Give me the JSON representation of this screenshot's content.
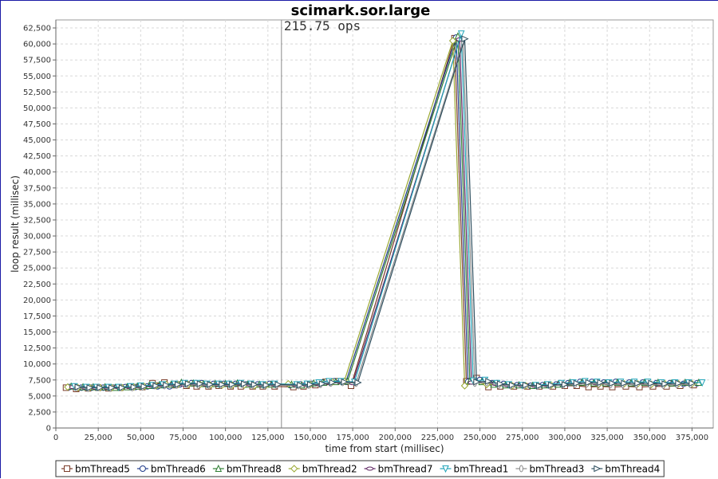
{
  "chart_data": {
    "type": "line",
    "title": "scimark.sor.large",
    "xlabel": "time from start (millisec)",
    "ylabel": "loop result (millisec)",
    "xlim": [
      0,
      387500
    ],
    "ylim": [
      0,
      63750
    ],
    "x_ticks": [
      0,
      25000,
      50000,
      75000,
      100000,
      125000,
      150000,
      175000,
      200000,
      225000,
      250000,
      275000,
      300000,
      325000,
      350000,
      375000
    ],
    "x_tick_labels": [
      "0",
      "25,000",
      "50,000",
      "75,000",
      "100,000",
      "125,000",
      "150,000",
      "175,000",
      "200,000",
      "225,000",
      "250,000",
      "275,000",
      "300,000",
      "325,000",
      "350,000",
      "375,000"
    ],
    "y_ticks": [
      0,
      2500,
      5000,
      7500,
      10000,
      12500,
      15000,
      17500,
      20000,
      22500,
      25000,
      27500,
      30000,
      32500,
      35000,
      37500,
      40000,
      42500,
      45000,
      47500,
      50000,
      52500,
      55000,
      57500,
      60000,
      62500
    ],
    "y_tick_labels": [
      "0",
      "2,500",
      "5,000",
      "7,500",
      "10,000",
      "12,500",
      "15,000",
      "17,500",
      "20,000",
      "22,500",
      "25,000",
      "27,500",
      "30,000",
      "32,500",
      "35,000",
      "37,500",
      "40,000",
      "42,500",
      "45,000",
      "47,500",
      "50,000",
      "52,500",
      "55,000",
      "57,500",
      "60,000",
      "62,500"
    ],
    "grid": true,
    "legend_position": "bottom",
    "annotation": {
      "text": "215.75 ops",
      "x": 133000
    },
    "series": [
      {
        "name": "bmThread5",
        "marker": "square",
        "color": "#7a3a28",
        "x": [
          6000,
          12000,
          19000,
          25000,
          31000,
          38000,
          44000,
          51000,
          57000,
          64000,
          70000,
          77000,
          83000,
          90000,
          96000,
          103000,
          109000,
          116000,
          122000,
          129000,
          140000,
          146000,
          153000,
          159000,
          166000,
          174000,
          235000,
          242000,
          248000,
          255000,
          262000,
          270000,
          278000,
          285000,
          293000,
          300000,
          307000,
          314000,
          321000,
          328000,
          336000,
          344000,
          352000,
          360000,
          368000,
          376000
        ],
        "y": [
          6300,
          6100,
          6200,
          6300,
          6200,
          6300,
          6400,
          6400,
          7000,
          7100,
          6700,
          6600,
          6500,
          6500,
          6600,
          6500,
          6500,
          6500,
          6500,
          6500,
          6400,
          6500,
          6700,
          7200,
          7300,
          6600,
          60900,
          7300,
          7800,
          6400,
          6500,
          6500,
          6500,
          6500,
          6500,
          6600,
          6600,
          6400,
          6500,
          6400,
          6500,
          6400,
          6500,
          6500,
          6600,
          6700
        ]
      },
      {
        "name": "bmThread6",
        "marker": "circle",
        "color": "#1f3a8a",
        "x": [
          8000,
          15000,
          21000,
          28000,
          34000,
          41000,
          47000,
          54000,
          60000,
          67000,
          73000,
          80000,
          86000,
          93000,
          99000,
          106000,
          112000,
          119000,
          126000,
          138000,
          144000,
          151000,
          157000,
          164000,
          171000,
          236000,
          243000,
          250000,
          257000,
          264000,
          272000,
          280000,
          287000,
          295000,
          302000,
          309000,
          316000,
          323000,
          330000,
          338000,
          346000,
          354000,
          362000,
          370000,
          378000
        ],
        "y": [
          6400,
          6300,
          6300,
          6300,
          6300,
          6400,
          6400,
          6500,
          6500,
          6500,
          6800,
          7000,
          7000,
          6900,
          6900,
          6900,
          6800,
          6800,
          6900,
          6700,
          6800,
          6900,
          7100,
          7300,
          7200,
          61000,
          7200,
          7500,
          7000,
          6900,
          6700,
          6600,
          6700,
          6800,
          7000,
          7200,
          7200,
          7100,
          7200,
          7100,
          7100,
          7000,
          7000,
          6900,
          7000
        ]
      },
      {
        "name": "bmThread8",
        "marker": "triangle-up",
        "color": "#2e7d32",
        "x": [
          9000,
          16000,
          22000,
          29000,
          35000,
          42000,
          48000,
          55000,
          61000,
          68000,
          74000,
          81000,
          87000,
          94000,
          100000,
          107000,
          113000,
          120000,
          127000,
          139000,
          145000,
          152000,
          158000,
          165000,
          172000,
          237000,
          244000,
          251000,
          258000,
          265000,
          273000,
          281000,
          288000,
          296000,
          303000,
          310000,
          317000,
          324000,
          331000,
          339000,
          347000,
          355000,
          363000,
          371000,
          379000
        ],
        "y": [
          6500,
          6400,
          6400,
          6400,
          6300,
          6400,
          6500,
          6600,
          6700,
          6800,
          7100,
          7000,
          6900,
          6900,
          6900,
          7000,
          6800,
          6800,
          6800,
          6800,
          6700,
          7000,
          7100,
          7200,
          7300,
          61200,
          7300,
          7200,
          6800,
          6700,
          6700,
          6600,
          6700,
          6800,
          7100,
          7100,
          7000,
          7000,
          7100,
          7000,
          7100,
          7100,
          7000,
          7100,
          7100
        ]
      },
      {
        "name": "bmThread2",
        "marker": "diamond",
        "color": "#9aa832",
        "x": [
          7000,
          13000,
          20000,
          26000,
          33000,
          39000,
          46000,
          52000,
          59000,
          65000,
          72000,
          78000,
          85000,
          91000,
          98000,
          104000,
          111000,
          117000,
          124000,
          137000,
          143000,
          150000,
          156000,
          163000,
          170000,
          234000,
          241000,
          247000,
          254000,
          261000,
          269000,
          277000,
          284000,
          292000,
          299000,
          306000,
          313000,
          320000,
          327000,
          335000,
          343000,
          351000,
          359000,
          367000,
          375000
        ],
        "y": [
          6400,
          6300,
          6300,
          6300,
          6300,
          6300,
          6400,
          6500,
          6600,
          6800,
          6800,
          6800,
          6800,
          6700,
          6700,
          6700,
          6700,
          6600,
          6700,
          6900,
          6700,
          6800,
          7000,
          7200,
          7300,
          60500,
          6600,
          7200,
          6800,
          6700,
          6600,
          6600,
          6600,
          6700,
          6800,
          6900,
          6900,
          6800,
          6900,
          6900,
          6900,
          6800,
          6900,
          6900,
          6900
        ]
      },
      {
        "name": "bmThread7",
        "marker": "ellipse-h",
        "color": "#5a1f5e",
        "x": [
          10000,
          17000,
          23000,
          30000,
          36000,
          43000,
          49000,
          56000,
          62000,
          69000,
          75000,
          82000,
          88000,
          95000,
          101000,
          108000,
          114000,
          121000,
          128000,
          141000,
          147000,
          154000,
          160000,
          167000,
          175000,
          238000,
          245000,
          252000,
          259000,
          266000,
          274000,
          282000,
          289000,
          297000,
          304000,
          311000,
          318000,
          325000,
          332000,
          340000,
          348000,
          356000,
          364000,
          372000
        ],
        "y": [
          6400,
          6300,
          6300,
          6300,
          6400,
          6400,
          6500,
          6600,
          6700,
          6800,
          6800,
          6900,
          6800,
          6800,
          6800,
          6900,
          6800,
          6700,
          6800,
          6700,
          6800,
          6900,
          7100,
          7200,
          7000,
          60700,
          7100,
          7300,
          6900,
          6700,
          6700,
          6600,
          6700,
          6900,
          7000,
          7100,
          7000,
          7000,
          7000,
          7000,
          7000,
          6900,
          7000,
          7000
        ]
      },
      {
        "name": "bmThread1",
        "marker": "triangle-down",
        "color": "#1fa3b8",
        "x": [
          11000,
          18000,
          24000,
          31000,
          37000,
          44000,
          50000,
          57000,
          63000,
          70000,
          76000,
          83000,
          89000,
          96000,
          102000,
          109000,
          115000,
          122000,
          129000,
          142000,
          148000,
          155000,
          161000,
          168000,
          176000,
          239000,
          246000,
          253000,
          260000,
          267000,
          275000,
          283000,
          290000,
          298000,
          305000,
          312000,
          319000,
          326000,
          333000,
          341000,
          349000,
          357000,
          365000,
          373000,
          381000
        ],
        "y": [
          6500,
          6400,
          6400,
          6400,
          6400,
          6500,
          6600,
          6700,
          6800,
          6900,
          7000,
          7000,
          6900,
          6900,
          6900,
          7000,
          6900,
          6800,
          6900,
          6800,
          6900,
          7100,
          7300,
          7300,
          7200,
          61600,
          7400,
          7500,
          7000,
          6800,
          6700,
          6700,
          6800,
          7000,
          7100,
          7300,
          7200,
          7100,
          7200,
          7200,
          7200,
          7100,
          7100,
          7100,
          7100
        ]
      },
      {
        "name": "bmThread3",
        "marker": "ellipse-v",
        "color": "#8c8c8c",
        "x": [
          12000,
          19000,
          25000,
          32000,
          38000,
          45000,
          51000,
          58000,
          64000,
          71000,
          77000,
          84000,
          90000,
          97000,
          103000,
          110000,
          116000,
          123000,
          130000,
          143000,
          149000,
          156000,
          162000,
          169000,
          177000,
          240000,
          247000,
          254000,
          261000,
          268000,
          276000,
          284000,
          291000,
          299000,
          306000,
          313000,
          320000,
          327000,
          334000,
          342000,
          350000,
          358000,
          366000,
          374000
        ],
        "y": [
          6300,
          6200,
          6300,
          6200,
          6300,
          6300,
          6400,
          6600,
          6600,
          6700,
          6800,
          6700,
          6700,
          6700,
          6700,
          6800,
          6700,
          6600,
          6700,
          6600,
          6700,
          6800,
          7000,
          7100,
          7000,
          60300,
          7000,
          7100,
          6700,
          6600,
          6600,
          6500,
          6600,
          6700,
          6800,
          6900,
          6900,
          6800,
          6800,
          6800,
          6800,
          6700,
          6800,
          6800
        ]
      },
      {
        "name": "bmThread4",
        "marker": "triangle-right",
        "color": "#2f4f5f",
        "x": [
          13000,
          20000,
          26000,
          33000,
          39000,
          46000,
          52000,
          59000,
          65000,
          72000,
          78000,
          85000,
          91000,
          98000,
          104000,
          111000,
          117000,
          124000,
          131000,
          144000,
          150000,
          157000,
          163000,
          170000,
          178000,
          241000,
          248000,
          255000,
          262000,
          269000,
          277000,
          285000,
          292000,
          300000,
          307000,
          314000,
          321000,
          328000,
          335000,
          343000,
          351000,
          359000,
          367000,
          375000
        ],
        "y": [
          6400,
          6300,
          6300,
          6300,
          6300,
          6400,
          6500,
          6600,
          6700,
          6800,
          6900,
          6900,
          6800,
          6800,
          6800,
          6900,
          6800,
          6700,
          6800,
          6700,
          6800,
          6900,
          7100,
          7200,
          7100,
          60800,
          7200,
          7300,
          6900,
          6700,
          6700,
          6600,
          6700,
          6800,
          7000,
          7100,
          7100,
          7000,
          7000,
          7000,
          7000,
          6900,
          7000,
          7000
        ]
      }
    ]
  }
}
